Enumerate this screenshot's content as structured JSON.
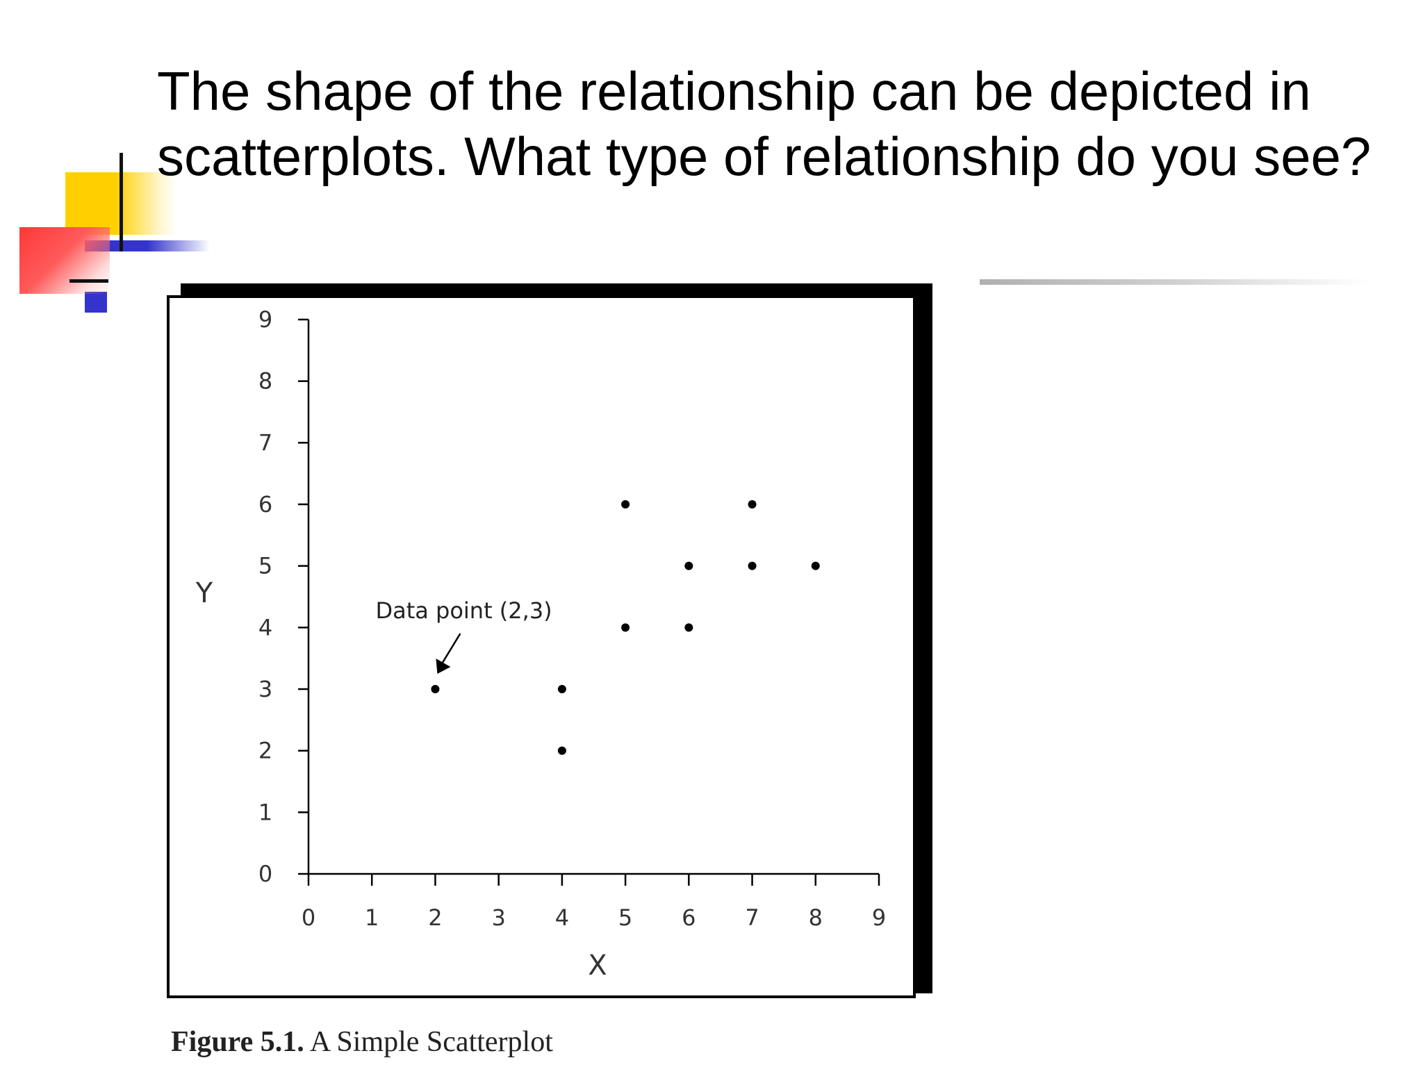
{
  "slide": {
    "title": "The shape of the relationship can be depicted in scatterplots.  What type of relationship do you see?"
  },
  "caption": {
    "label": "Figure 5.1.",
    "text": "A Simple Scatterplot"
  },
  "colors": {
    "accent_yellow": "#ffd000",
    "accent_red": "#ff3838",
    "accent_blue": "#3434cc",
    "ink": "#000000"
  },
  "chart_data": {
    "type": "scatter",
    "xlabel": "X",
    "ylabel": "Y",
    "xlim": [
      0,
      9
    ],
    "ylim": [
      0,
      9
    ],
    "x_ticks": [
      "0",
      "1",
      "2",
      "3",
      "4",
      "5",
      "6",
      "7",
      "8",
      "9"
    ],
    "y_ticks": [
      "0",
      "1",
      "2",
      "3",
      "4",
      "5",
      "6",
      "7",
      "8",
      "9"
    ],
    "grid": false,
    "points": [
      {
        "x": 2,
        "y": 3
      },
      {
        "x": 4,
        "y": 3
      },
      {
        "x": 4,
        "y": 2
      },
      {
        "x": 5,
        "y": 6
      },
      {
        "x": 5,
        "y": 4
      },
      {
        "x": 6,
        "y": 5
      },
      {
        "x": 6,
        "y": 4
      },
      {
        "x": 7,
        "y": 6
      },
      {
        "x": 7,
        "y": 5
      },
      {
        "x": 8,
        "y": 5
      }
    ],
    "annotations": [
      {
        "text": "Data point (2,3)",
        "x": 2,
        "y": 3
      }
    ]
  }
}
